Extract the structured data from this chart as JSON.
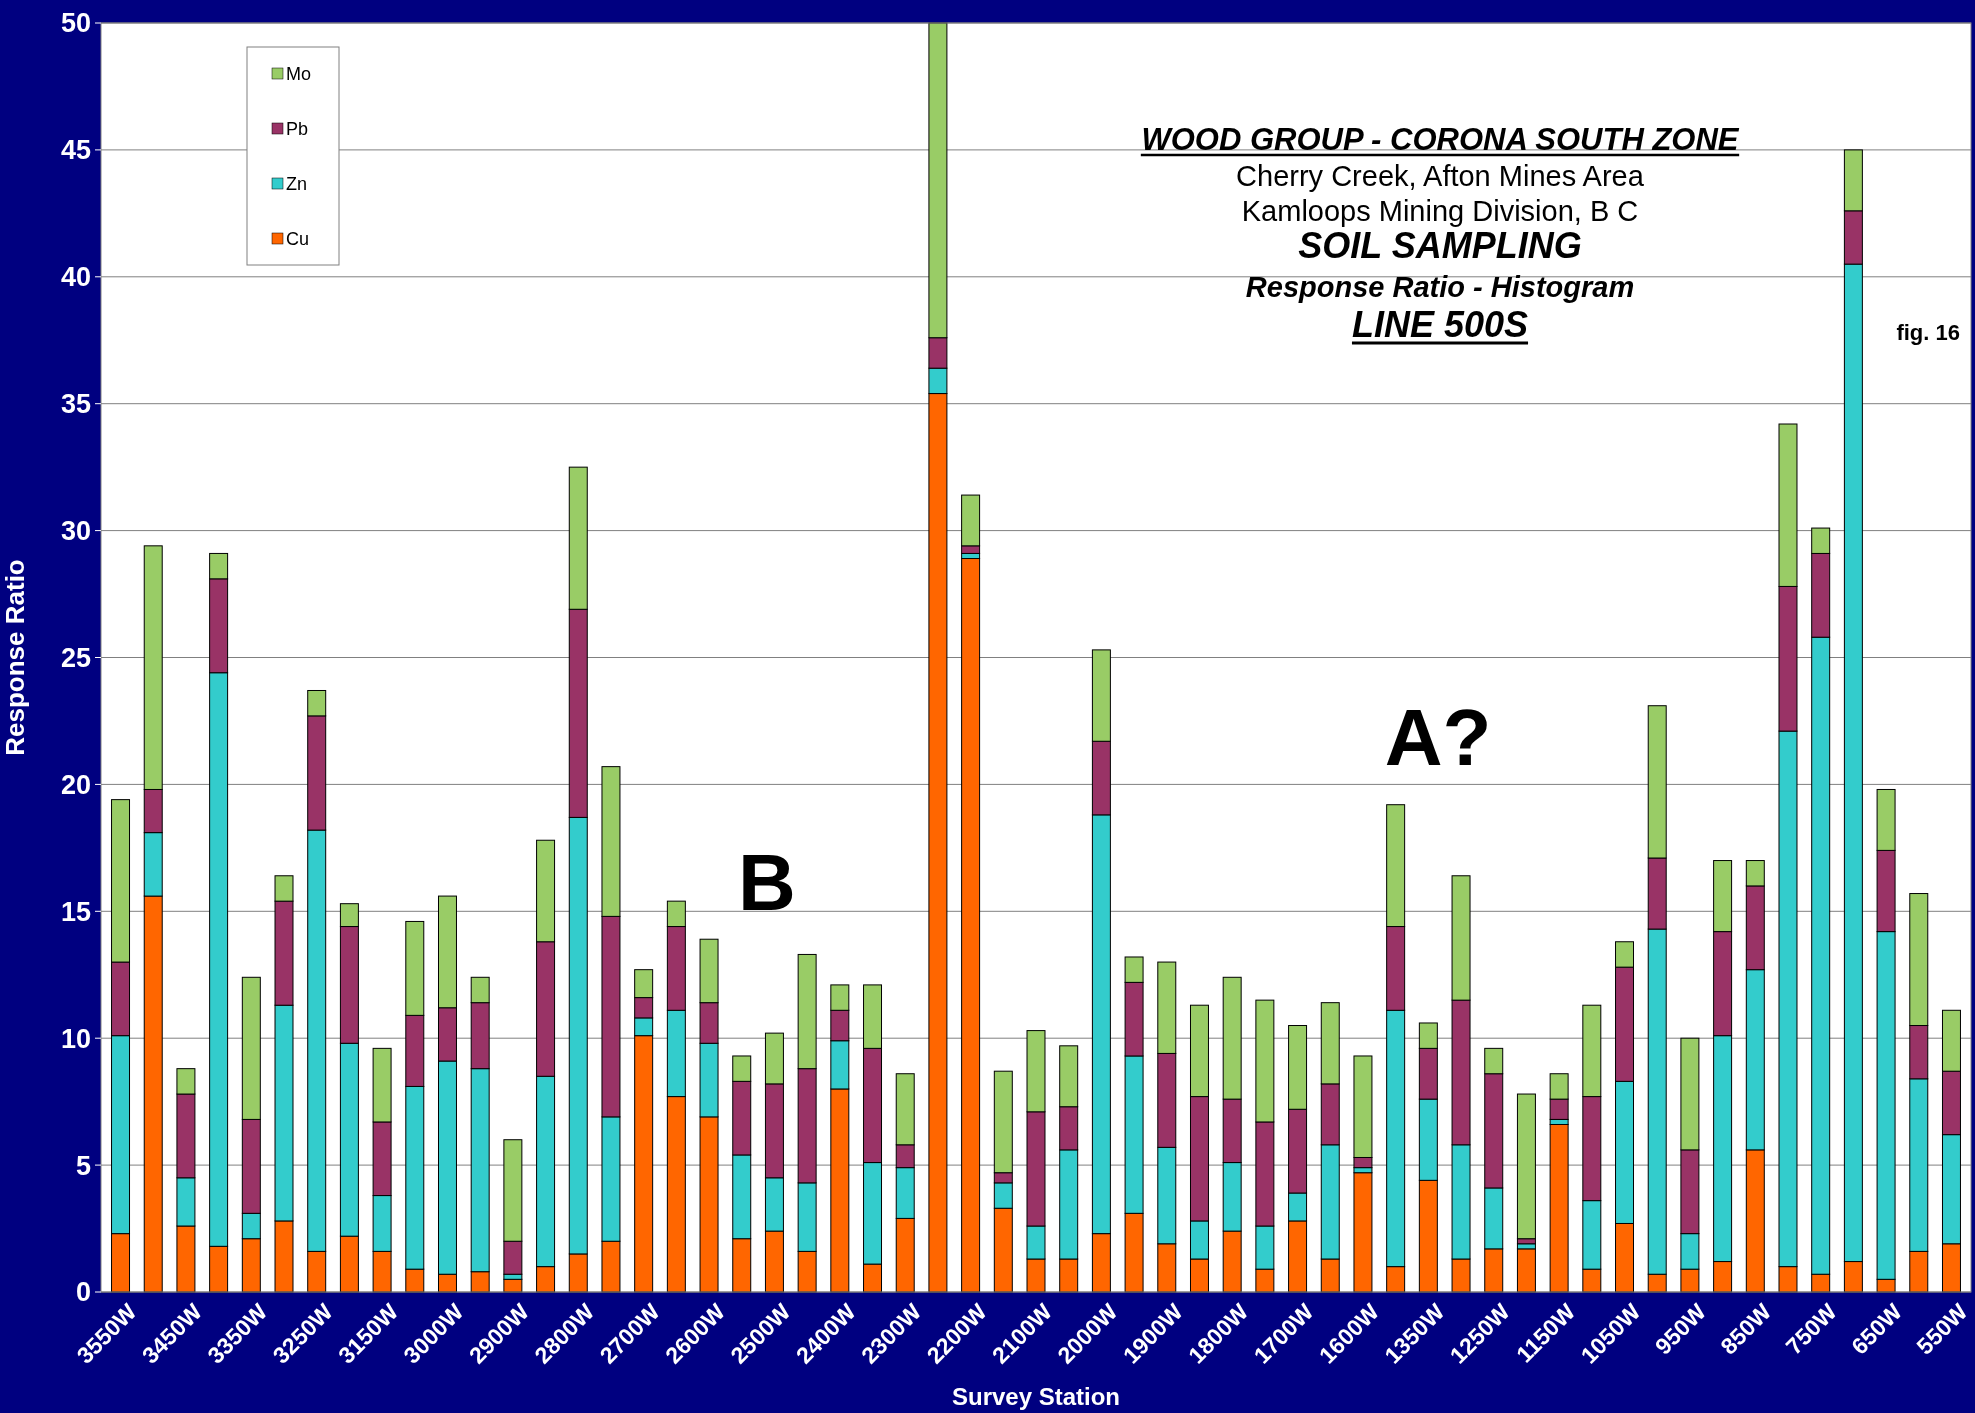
{
  "chart_data": {
    "type": "bar",
    "stacked": true,
    "title": "WOOD GROUP - CORONA SOUTH ZONE",
    "subtitle": "Cherry Creek, Afton Mines Area\nKamloops Mining Division, B C",
    "xlabel": "Survey Station",
    "ylabel": "Response Ratio",
    "annotations": [
      "SOIL SAMPLING",
      "Response Ratio - Histogram",
      "LINE 500S",
      "fig. 16",
      "A?",
      "B"
    ],
    "categories": [
      "3550W",
      null,
      "3450W",
      null,
      "3350W",
      null,
      "3250W",
      null,
      "3150W",
      null,
      "3000W",
      null,
      "2900W",
      null,
      "2800W",
      null,
      "2700W",
      null,
      "2600W",
      null,
      "2500W",
      null,
      "2400W",
      null,
      "2300W",
      null,
      "2200W",
      null,
      "2100W",
      null,
      "2000W",
      null,
      "1900W",
      null,
      "1800W",
      null,
      "1700W",
      null,
      "1600W",
      null,
      "1350W",
      null,
      "1250W",
      null,
      "1150W",
      null,
      "1050W",
      null,
      "950W",
      null,
      "850W",
      null,
      "750W",
      null,
      "650W",
      null,
      "550W"
    ],
    "series": [
      {
        "name": "Cu",
        "color": "#ff6600",
        "values": [
          2.3,
          15.6,
          2.6,
          1.8,
          2.1,
          2.8,
          1.6,
          2.2,
          1.6,
          0.9,
          0.7,
          0.8,
          0.5,
          1.0,
          1.5,
          2.0,
          10.1,
          7.7,
          6.9,
          2.1,
          2.4,
          1.6,
          8.0,
          1.1,
          2.9,
          35.4,
          28.9,
          3.3,
          1.3,
          1.3,
          2.3,
          3.1,
          1.9,
          1.3,
          2.4,
          0.9,
          2.8,
          1.3,
          4.7,
          1.0,
          4.4,
          1.3,
          1.7,
          1.7,
          6.6,
          0.9,
          2.7,
          0.7,
          0.9,
          1.2,
          5.6,
          1.0,
          0.7,
          1.2,
          0.5,
          1.6,
          1.9
        ]
      },
      {
        "name": "Zn",
        "color": "#33cccc",
        "values": [
          7.8,
          2.5,
          1.9,
          22.6,
          1.0,
          8.5,
          16.6,
          7.6,
          2.2,
          7.2,
          8.4,
          8.0,
          0.2,
          7.5,
          17.2,
          4.9,
          0.7,
          3.4,
          2.9,
          3.3,
          2.1,
          2.7,
          1.9,
          4.0,
          2.0,
          1.0,
          0.2,
          1.0,
          1.3,
          4.3,
          16.5,
          6.2,
          3.8,
          1.5,
          2.7,
          1.7,
          1.1,
          4.5,
          0.2,
          10.1,
          3.2,
          4.5,
          2.4,
          0.2,
          0.2,
          2.7,
          5.6,
          13.6,
          1.4,
          8.9,
          7.1,
          21.1,
          25.1,
          39.3,
          13.7,
          6.8,
          4.3
        ]
      },
      {
        "name": "Pb",
        "color": "#993366",
        "values": [
          2.9,
          1.7,
          3.3,
          3.7,
          3.7,
          4.1,
          4.5,
          4.6,
          2.9,
          2.8,
          2.1,
          2.6,
          1.3,
          5.3,
          8.2,
          7.9,
          0.8,
          3.3,
          1.6,
          2.9,
          3.7,
          4.5,
          1.2,
          4.5,
          0.9,
          1.2,
          0.3,
          0.4,
          4.5,
          1.7,
          2.9,
          2.9,
          3.7,
          4.9,
          2.5,
          4.1,
          3.3,
          2.4,
          0.4,
          3.3,
          2.0,
          5.7,
          4.5,
          0.2,
          0.8,
          4.1,
          4.5,
          2.8,
          3.3,
          4.1,
          3.3,
          5.7,
          3.3,
          2.1,
          3.2,
          2.1,
          2.5
        ]
      },
      {
        "name": "Mo",
        "color": "#99cc66",
        "values": [
          6.4,
          9.6,
          1.0,
          1.0,
          5.6,
          1.0,
          1.0,
          0.9,
          2.9,
          3.7,
          4.4,
          1.0,
          4.0,
          4.0,
          5.6,
          5.9,
          1.1,
          1.0,
          2.5,
          1.0,
          2.0,
          4.5,
          1.0,
          2.5,
          2.8,
          12.4,
          2.0,
          4.0,
          3.2,
          2.4,
          3.6,
          1.0,
          3.6,
          3.6,
          4.8,
          4.8,
          3.3,
          3.2,
          4.0,
          4.8,
          1.0,
          4.9,
          1.0,
          5.7,
          1.0,
          3.6,
          1.0,
          6.0,
          4.4,
          2.8,
          1.0,
          6.4,
          1.0,
          2.4,
          2.4,
          5.2,
          2.4
        ]
      }
    ],
    "ylim": [
      0,
      50
    ],
    "yticks": [
      0,
      5,
      10,
      15,
      20,
      25,
      30,
      35,
      40,
      45,
      50
    ],
    "grid": "y",
    "legend": "top left"
  }
}
